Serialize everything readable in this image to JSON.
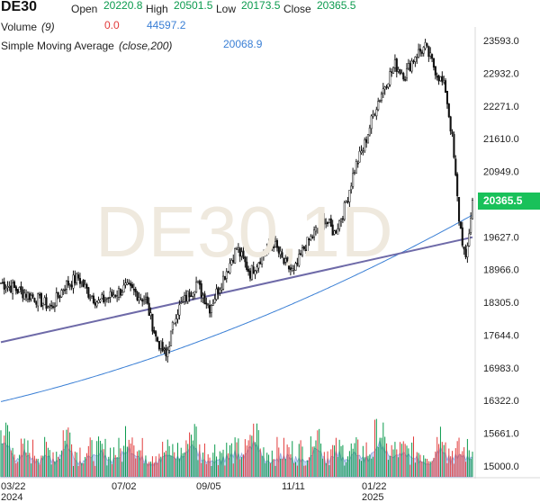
{
  "header": {
    "symbol": "DE30",
    "open_label": "Open",
    "open_value": "20220.8",
    "high_label": "High",
    "high_value": "20501.5",
    "low_label": "Low",
    "low_value": "20173.5",
    "close_label": "Close",
    "close_value": "20365.5",
    "volume_label": "Volume",
    "volume_param": "(9)",
    "volume_value": "0.0",
    "volume_ma_value": "44597.2",
    "sma_label": "Simple Moving Average",
    "sma_param": "(close,200)",
    "sma_value": "20068.9"
  },
  "watermark": "DE30,1D",
  "last_price_tag": "20365.5",
  "colors": {
    "up": "#0a9a4d",
    "down": "#e23b3b",
    "sma": "#3a7fd5",
    "trendline": "#6e6aa8",
    "price_tag": "#19c15a",
    "volume_fill": "#c7d4f2"
  },
  "chart_data": {
    "type": "candlestick",
    "title": "DE30",
    "timeframe": "1D",
    "ylim": [
      14900,
      23900
    ],
    "y_ticks": [
      "23593.0",
      "22932.0",
      "22271.0",
      "21610.0",
      "20949.0",
      "19627.0",
      "18966.0",
      "18305.0",
      "17644.0",
      "16983.0",
      "16322.0",
      "15661.0",
      "15000.0"
    ],
    "x_ticks": [
      {
        "label": "03/22",
        "sub": "2024"
      },
      {
        "label": "07/02",
        "sub": ""
      },
      {
        "label": "09/05",
        "sub": ""
      },
      {
        "label": "11/11",
        "sub": ""
      },
      {
        "label": "01/22",
        "sub": "2025"
      }
    ],
    "series": [
      {
        "name": "DE30 close",
        "x_index": [
          0,
          10,
          20,
          30,
          38,
          46,
          52,
          58,
          66,
          74,
          80,
          86,
          92,
          98,
          104,
          110,
          116,
          124,
          132,
          140,
          148,
          156,
          162,
          168,
          174,
          180,
          186,
          192,
          198,
          204,
          210,
          216,
          222,
          228,
          234,
          240,
          246,
          252,
          258,
          264,
          268,
          272,
          276,
          280
        ],
        "values": [
          18700,
          18550,
          18400,
          18200,
          18650,
          18800,
          18500,
          18300,
          18450,
          18600,
          18500,
          18350,
          17600,
          17200,
          18100,
          18400,
          18700,
          18200,
          18800,
          19400,
          18900,
          19300,
          19500,
          19100,
          18900,
          19400,
          19700,
          20000,
          19700,
          20200,
          21000,
          21500,
          22200,
          22700,
          23100,
          22900,
          23300,
          23450,
          23000,
          22600,
          21600,
          20000,
          19100,
          20365
        ]
      },
      {
        "name": "Simple Moving Average (close,200)",
        "x_index": [
          0,
          280
        ],
        "values": [
          16300,
          20069
        ]
      },
      {
        "name": "Volume",
        "values": []
      }
    ],
    "trendline": {
      "x_index": [
        0,
        280
      ],
      "values": [
        17500,
        19620
      ]
    },
    "last_value": 20365.5
  }
}
